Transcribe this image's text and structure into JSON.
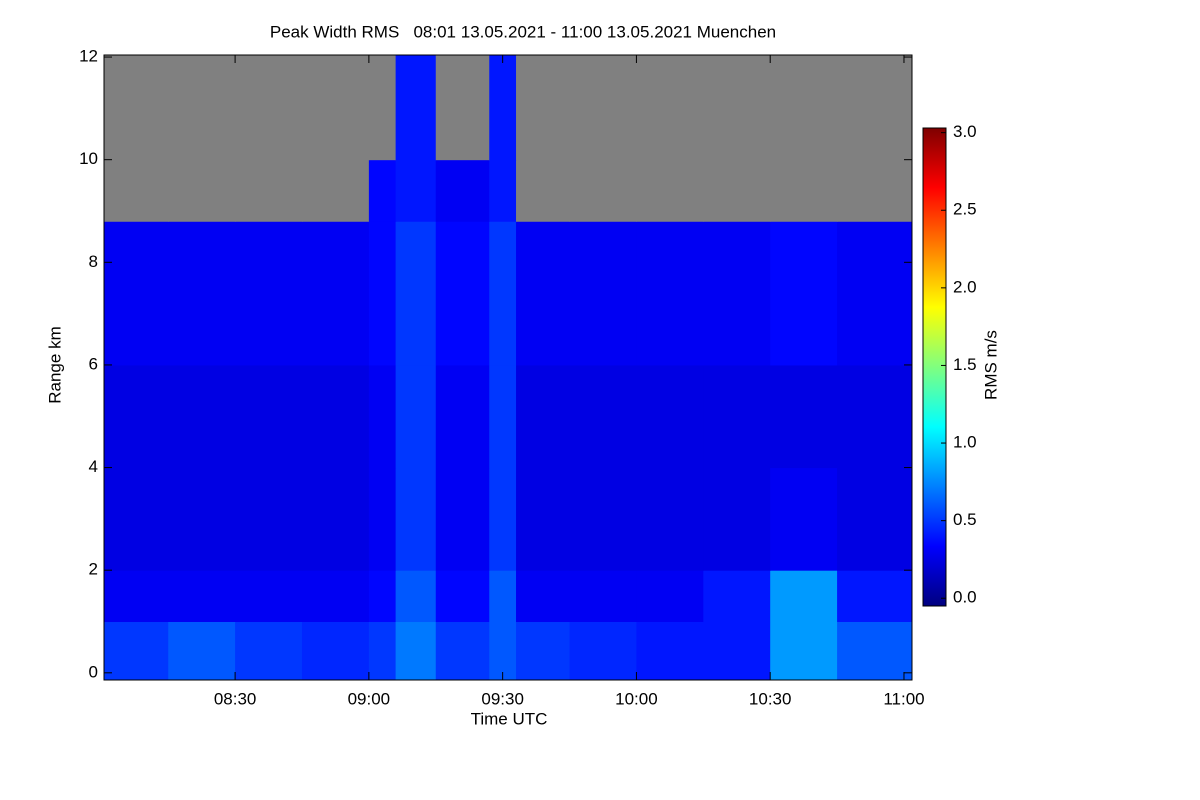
{
  "chart_data": {
    "type": "heatmap",
    "title": "Peak Width RMS   08:01 13.05.2021 - 11:00 13.05.2021 Muenchen",
    "x_label": "Time UTC",
    "y_label": "Range km",
    "colorbar_label": "RMS m/s",
    "x": [
      8.01,
      8.25,
      8.5,
      8.75,
      9.0,
      9.1,
      9.25,
      9.45,
      9.55,
      9.75,
      10.0,
      10.25,
      10.5,
      10.75,
      11.03
    ],
    "y": [
      -0.14,
      1.0,
      2.0,
      4.0,
      6.0,
      8.8,
      10.0,
      12.04
    ],
    "z": [
      [
        0.5,
        0.6,
        0.5,
        0.45,
        0.5,
        0.7,
        0.5,
        0.6,
        0.5,
        0.45,
        0.4,
        0.4,
        0.8,
        0.6
      ],
      [
        0.3,
        0.3,
        0.3,
        0.3,
        0.35,
        0.6,
        0.35,
        0.6,
        0.3,
        0.3,
        0.3,
        0.4,
        0.8,
        0.4
      ],
      [
        0.25,
        0.25,
        0.25,
        0.25,
        0.3,
        0.5,
        0.3,
        0.5,
        0.25,
        0.25,
        0.25,
        0.25,
        0.3,
        0.25
      ],
      [
        0.25,
        0.25,
        0.25,
        0.25,
        0.3,
        0.5,
        0.3,
        0.5,
        0.25,
        0.25,
        0.25,
        0.25,
        0.25,
        0.25
      ],
      [
        0.3,
        0.3,
        0.3,
        0.3,
        0.35,
        0.5,
        0.35,
        0.5,
        0.3,
        0.3,
        0.3,
        0.3,
        0.35,
        0.3
      ],
      [
        null,
        null,
        null,
        null,
        0.35,
        0.4,
        0.3,
        0.4,
        null,
        null,
        null,
        null,
        null,
        null
      ],
      [
        null,
        null,
        null,
        null,
        null,
        0.4,
        null,
        0.4,
        null,
        null,
        null,
        null,
        null,
        null
      ]
    ],
    "xlim": [
      8.01,
      11.03
    ],
    "ylim": [
      -0.14,
      12.04
    ],
    "zlim": [
      -0.05,
      3.03
    ],
    "xticks": [
      {
        "value": 8.5,
        "label": "08:30"
      },
      {
        "value": 9.0,
        "label": "09:00"
      },
      {
        "value": 9.5,
        "label": "09:30"
      },
      {
        "value": 10.0,
        "label": "10:00"
      },
      {
        "value": 10.5,
        "label": "10:30"
      },
      {
        "value": 11.0,
        "label": "11:00"
      }
    ],
    "yticks": [
      0,
      2,
      4,
      6,
      8,
      10,
      12
    ],
    "zticks": [
      {
        "value": 0,
        "label": "0.0"
      },
      {
        "value": 0.5,
        "label": "0.5"
      },
      {
        "value": 1,
        "label": "1.0"
      },
      {
        "value": 1.5,
        "label": "1.5"
      },
      {
        "value": 2,
        "label": "2.0"
      },
      {
        "value": 2.5,
        "label": "2.5"
      },
      {
        "value": 3,
        "label": "3.0"
      }
    ],
    "colormap": [
      "#00007f",
      "#0000ff",
      "#00ffff",
      "#ffff00",
      "#ff0000",
      "#7f0000"
    ],
    "missing_color": "#808080"
  }
}
